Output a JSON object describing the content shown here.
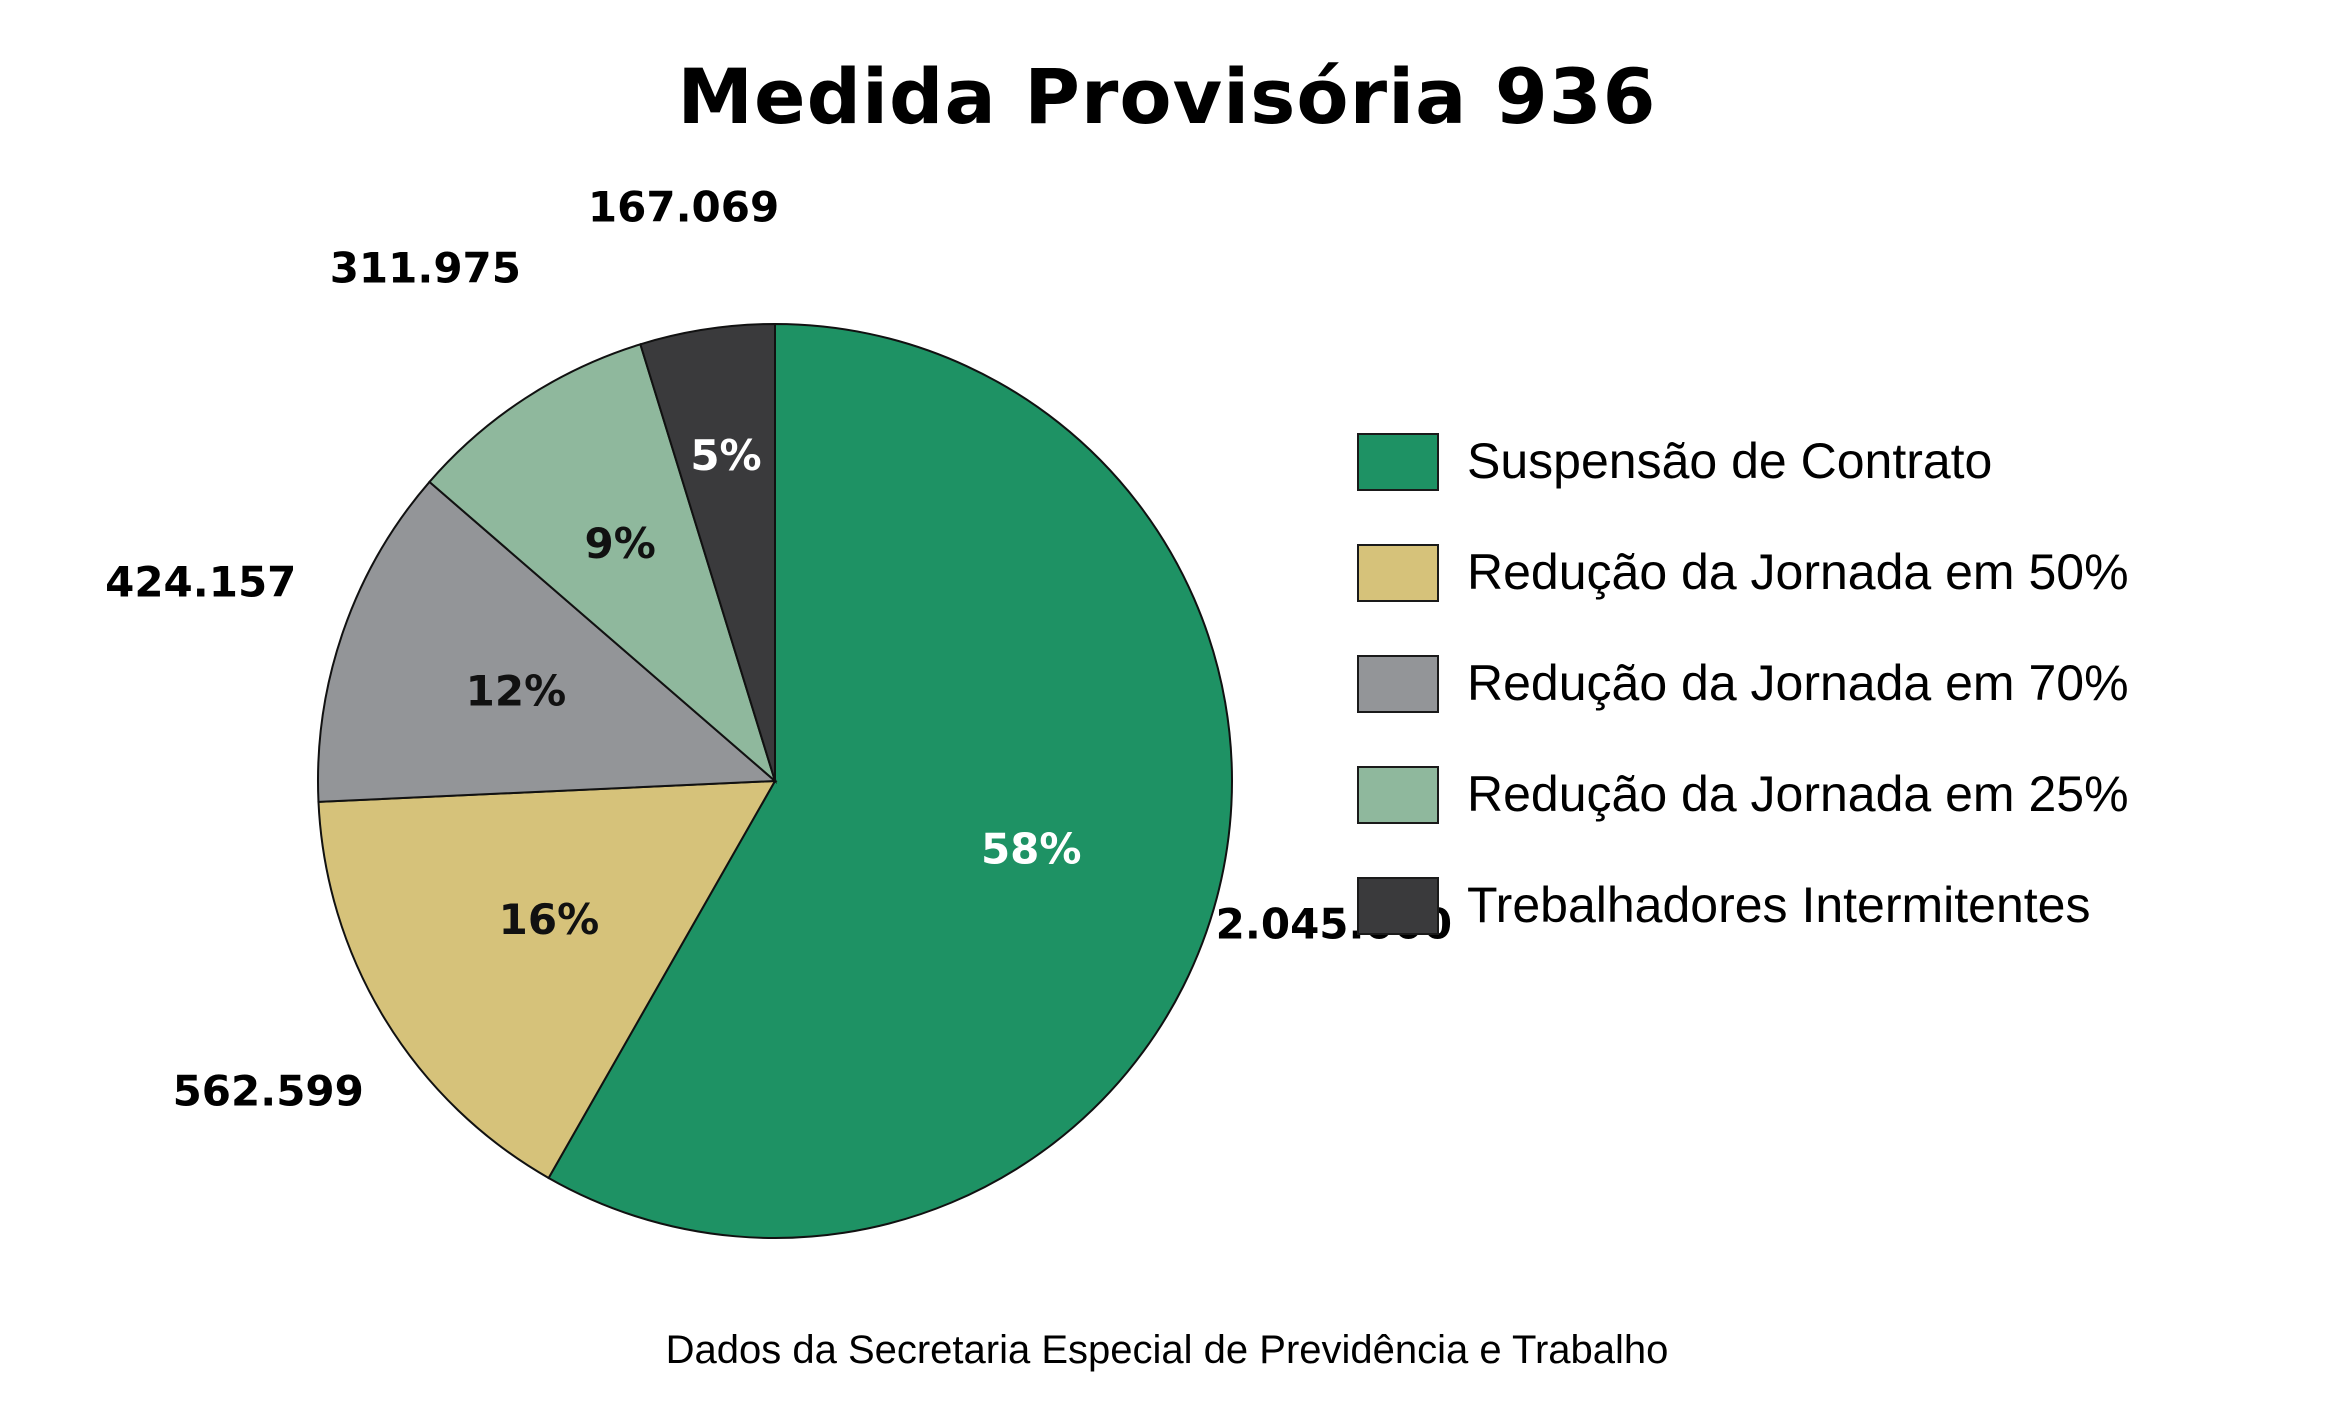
{
  "title": "Medida Provisória 936",
  "footer": "Dados da Secretaria Especial de Previdência e Trabalho",
  "chart_data": {
    "type": "pie",
    "title": "Medida Provisória 936",
    "slices": [
      {
        "name": "Suspensão de Contrato",
        "value": 2045000,
        "value_label": "2.045.000",
        "percent_label": "58%",
        "color": "#1e9264",
        "label_color": "#ffffff"
      },
      {
        "name": "Redução da Jornada em 50%",
        "value": 562599,
        "value_label": "562.599",
        "percent_label": "16%",
        "color": "#d6c27a",
        "label_color": "#111111"
      },
      {
        "name": "Redução da Jornada em 70%",
        "value": 424157,
        "value_label": "424.157",
        "percent_label": "12%",
        "color": "#939598",
        "label_color": "#111111"
      },
      {
        "name": "Redução da Jornada em 25%",
        "value": 311975,
        "value_label": "311.975",
        "percent_label": "9%",
        "color": "#8fb89d",
        "label_color": "#111111"
      },
      {
        "name": "Trebalhadores Intermitentes",
        "value": 167069,
        "value_label": "167.069",
        "percent_label": "5%",
        "color": "#3a3a3c",
        "label_color": "#ffffff"
      }
    ],
    "legend_position": "right"
  }
}
